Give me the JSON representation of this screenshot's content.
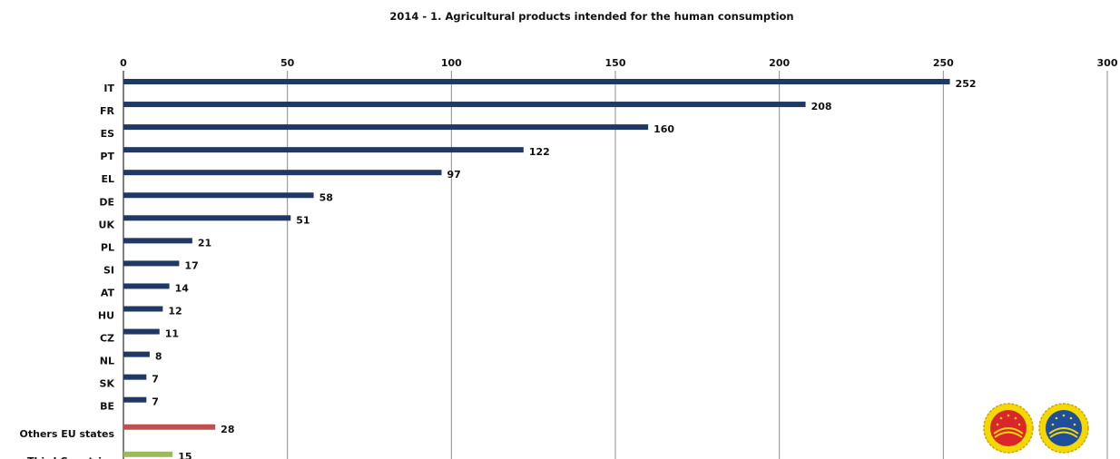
{
  "chart_data": {
    "type": "bar",
    "orientation": "horizontal",
    "title": "2014 - 1. Agricultural products intended for the human consumption",
    "categories": [
      "IT",
      "FR",
      "ES",
      "PT",
      "EL",
      "DE",
      "UK",
      "PL",
      "SI",
      "AT",
      "HU",
      "CZ",
      "NL",
      "SK",
      "BE",
      "Others EU states",
      "Third Countries"
    ],
    "values": [
      252,
      208,
      160,
      122,
      97,
      58,
      51,
      21,
      17,
      14,
      12,
      11,
      8,
      7,
      7,
      28,
      15
    ],
    "bar_colors": [
      "#1f3864",
      "#1f3864",
      "#1f3864",
      "#1f3864",
      "#1f3864",
      "#1f3864",
      "#1f3864",
      "#1f3864",
      "#1f3864",
      "#1f3864",
      "#1f3864",
      "#1f3864",
      "#1f3864",
      "#1f3864",
      "#1f3864",
      "#c0504d",
      "#9bbb59"
    ],
    "x_ticks": [
      0,
      50,
      100,
      150,
      200,
      250,
      300
    ],
    "xlim": [
      0,
      300
    ],
    "xlabel": "",
    "ylabel": "",
    "x_axis_position": "top",
    "grid": true,
    "data_labels": true
  },
  "colors": {
    "country_bar": "#1f3864",
    "others_bar": "#c0504d",
    "third_countries_bar": "#9bbb59",
    "gridline": "#8c8c8c",
    "logo_pdo_outer": "#f5d800",
    "logo_pdo_inner": "#d9262c",
    "logo_pgi_inner": "#1f4e9c"
  },
  "logos": [
    "pdo-seal-icon",
    "pgi-seal-icon"
  ]
}
